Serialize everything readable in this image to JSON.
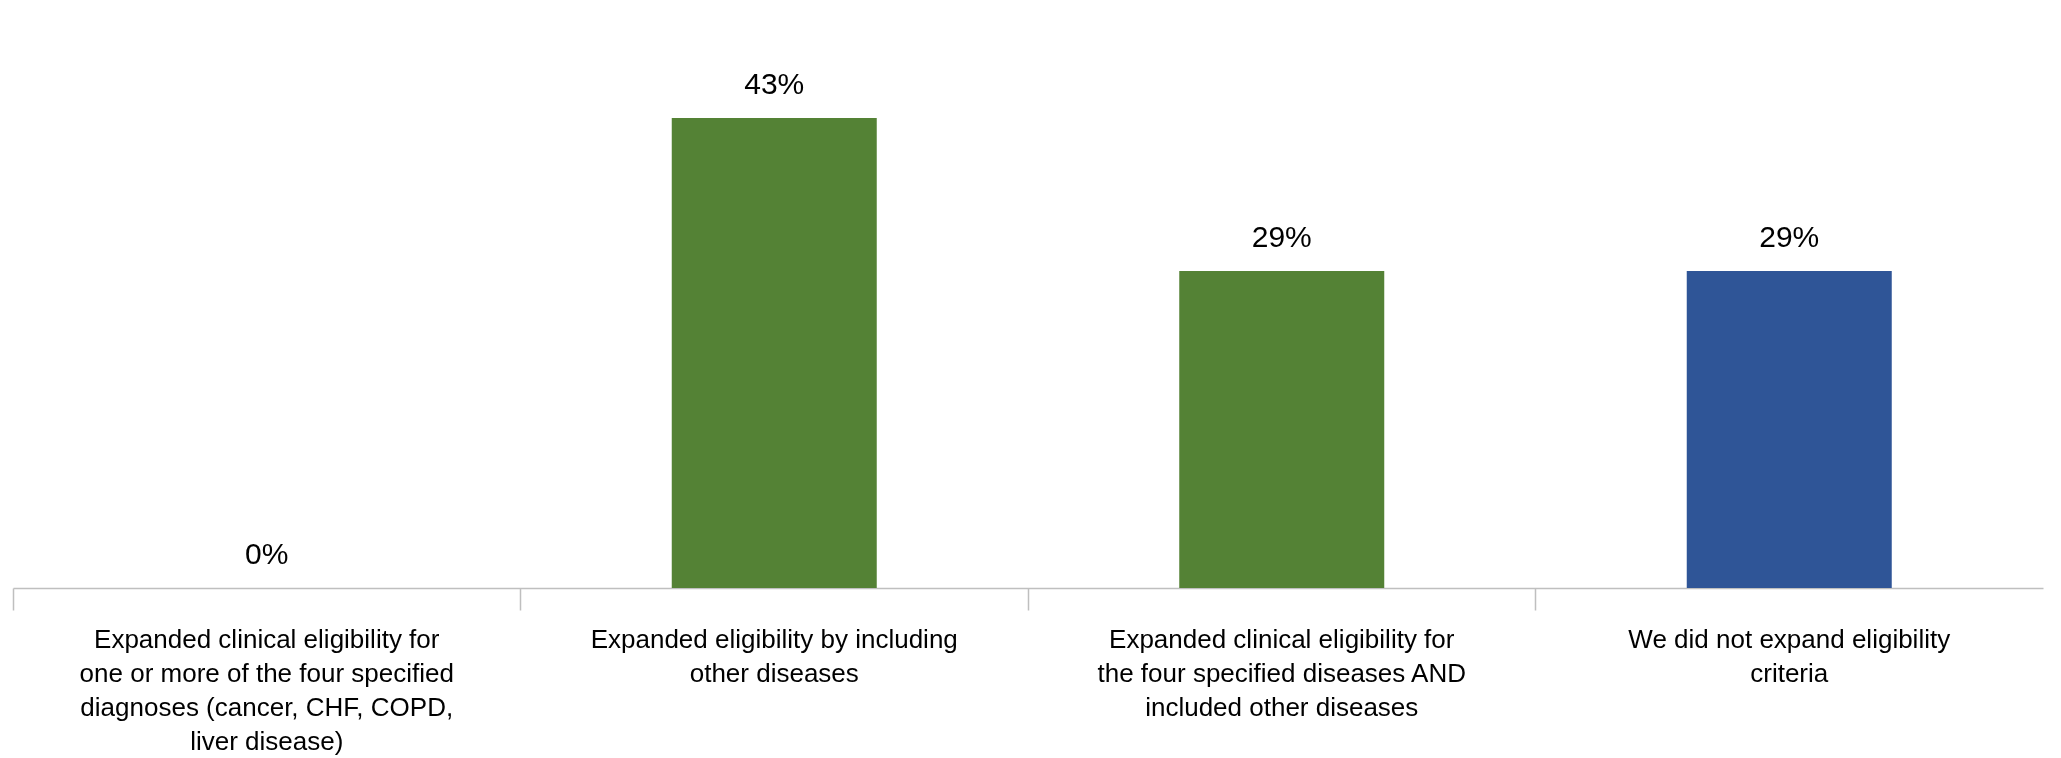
{
  "chart_data": {
    "type": "bar",
    "categories": [
      "Expanded clinical eligibility for one or more of the four specified diagnoses (cancer, CHF, COPD, liver disease)",
      "Expanded eligibility by including other diseases",
      "Expanded clinical eligibility for the four specified diseases AND included other diseases",
      "We did not expand eligibility criteria"
    ],
    "values": [
      0,
      43,
      29,
      29
    ],
    "colors": [
      "#548235",
      "#548235",
      "#548235",
      "#2f5597"
    ],
    "value_labels": [
      "0%",
      "43%",
      "29%",
      "29%"
    ]
  }
}
